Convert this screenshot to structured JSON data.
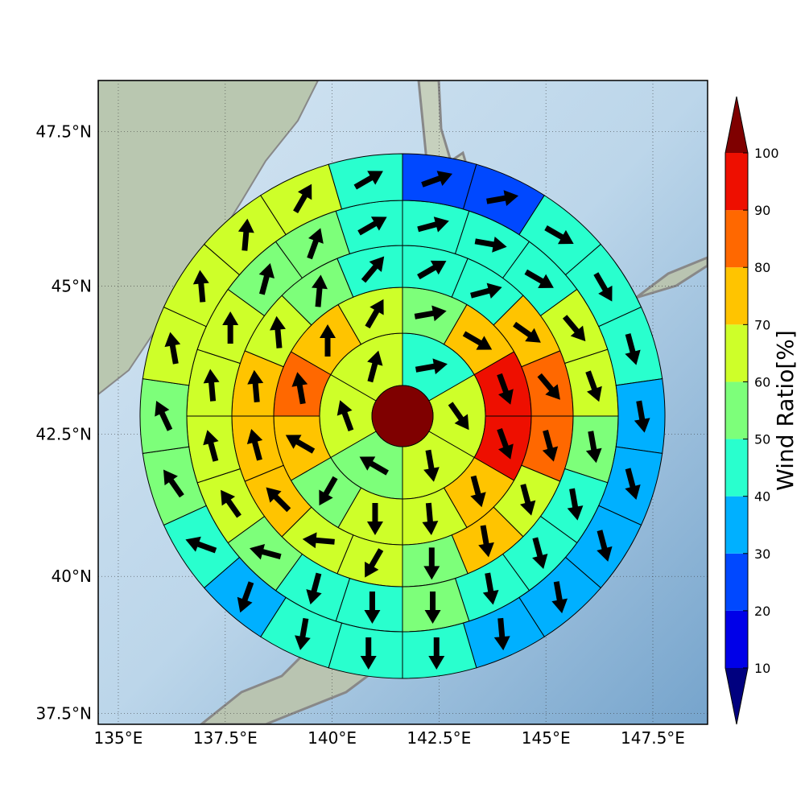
{
  "chart_data": {
    "type": "polar",
    "xlim": [
      134.53,
      148.78
    ],
    "ylim": [
      37.3,
      48.3
    ],
    "xticks": [
      {
        "value": 135,
        "label": "135°E"
      },
      {
        "value": 137.5,
        "label": "137.5°E"
      },
      {
        "value": 140,
        "label": "140°E"
      },
      {
        "value": 142.5,
        "label": "142.5°E"
      },
      {
        "value": 145,
        "label": "145°E"
      },
      {
        "value": 147.5,
        "label": "147.5°E"
      }
    ],
    "yticks": [
      {
        "value": 37.5,
        "label": "37.5°N"
      },
      {
        "value": 40,
        "label": "40°N"
      },
      {
        "value": 42.5,
        "label": "42.5°N"
      },
      {
        "value": 45,
        "label": "45°N"
      },
      {
        "value": 47.5,
        "label": "47.5°N"
      }
    ],
    "grid": true,
    "center_value": 105,
    "rings": [
      {
        "values": [
          45,
          65,
          65,
          55,
          65,
          65
        ],
        "directions": [
          80,
          145,
          170,
          300,
          340,
          15
        ]
      },
      {
        "values": [
          55,
          75,
          95,
          95,
          75,
          65,
          65,
          55,
          75,
          85,
          75,
          65
        ],
        "directions": [
          80,
          120,
          160,
          160,
          165,
          175,
          180,
          210,
          300,
          350,
          0,
          30
        ]
      },
      {
        "values": [
          45,
          45,
          75,
          85,
          85,
          65,
          75,
          55,
          65,
          65,
          75,
          75,
          75,
          65,
          55,
          45
        ],
        "directions": [
          60,
          75,
          125,
          140,
          165,
          165,
          170,
          180,
          210,
          275,
          315,
          345,
          355,
          355,
          5,
          40
        ]
      },
      {
        "values": [
          45,
          45,
          45,
          65,
          65,
          55,
          45,
          45,
          45,
          55,
          45,
          45,
          55,
          65,
          65,
          65,
          65,
          55,
          55,
          45
        ],
        "directions": [
          75,
          100,
          120,
          140,
          160,
          170,
          170,
          165,
          170,
          180,
          180,
          195,
          285,
          325,
          345,
          355,
          0,
          15,
          20,
          60
        ]
      },
      {
        "values": [
          25,
          25,
          45,
          45,
          45,
          35,
          35,
          35,
          35,
          35,
          45,
          45,
          45,
          35,
          45,
          55,
          55,
          65,
          65,
          65,
          65,
          45
        ],
        "directions": [
          70,
          80,
          120,
          150,
          165,
          170,
          165,
          165,
          170,
          175,
          180,
          180,
          190,
          200,
          290,
          325,
          335,
          350,
          355,
          5,
          30,
          60
        ]
      }
    ],
    "colorbar": {
      "label": "Wind Ratio[%]",
      "ticks": [
        10,
        20,
        30,
        40,
        50,
        60,
        70,
        80,
        90,
        100
      ],
      "colors": [
        "#00007f",
        "#0000e8",
        "#0048ff",
        "#00b0ff",
        "#29ffce",
        "#7dff7a",
        "#ceff29",
        "#ffc400",
        "#ff6800",
        "#ee0f00",
        "#7f0000"
      ]
    }
  }
}
